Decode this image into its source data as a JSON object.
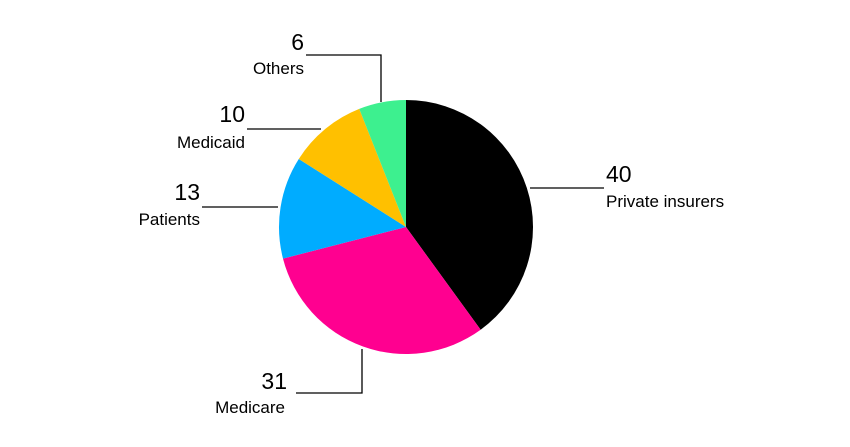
{
  "chart_data": {
    "type": "pie",
    "slices": [
      {
        "label": "Private insurers",
        "value": 40,
        "color": "#000000"
      },
      {
        "label": "Medicare",
        "value": 31,
        "color": "#ff0090"
      },
      {
        "label": "Patients",
        "value": 13,
        "color": "#00acff"
      },
      {
        "label": "Medicaid",
        "value": 10,
        "color": "#ffc000"
      },
      {
        "label": "Others",
        "value": 6,
        "color": "#3df08f"
      }
    ]
  }
}
